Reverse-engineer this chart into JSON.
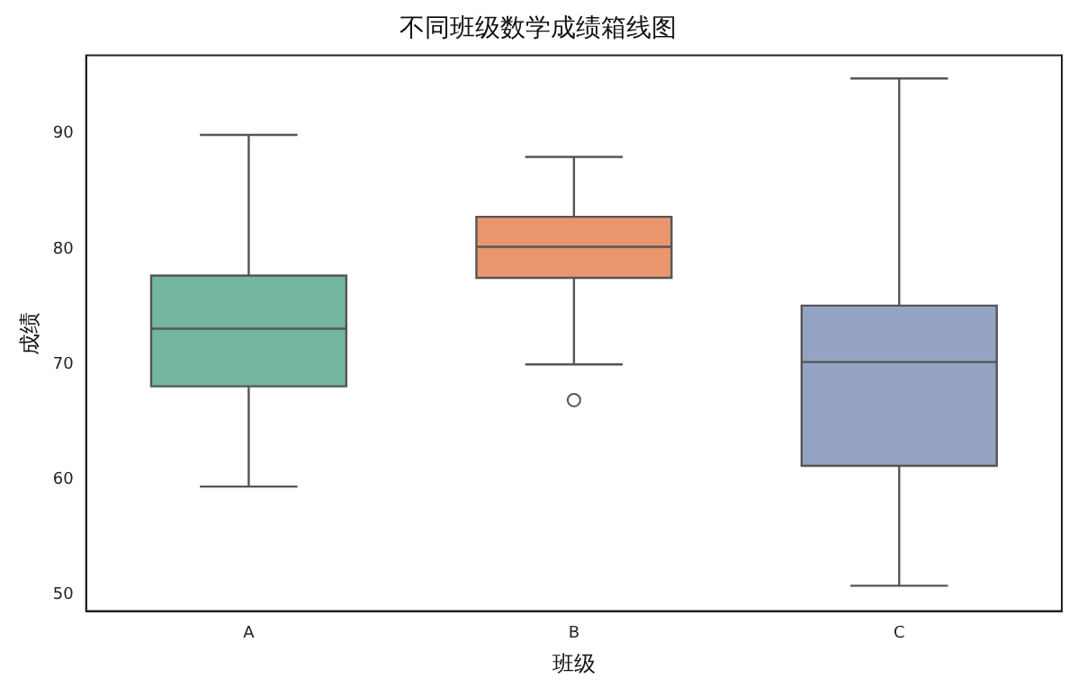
{
  "chart_data": {
    "type": "box",
    "title": "不同班级数学成绩箱线图",
    "xlabel": "班级",
    "ylabel": "成绩",
    "categories": [
      "A",
      "B",
      "C"
    ],
    "colors": [
      "#73b6a1",
      "#e9966f",
      "#95a4c4"
    ],
    "boxes": [
      {
        "low": 59.4,
        "q1": 68.1,
        "median": 73.1,
        "q3": 77.7,
        "high": 89.9
      },
      {
        "low": 70.0,
        "q1": 77.5,
        "median": 80.2,
        "q3": 82.8,
        "high": 88.0,
        "outliers": [
          66.9
        ]
      },
      {
        "low": 50.8,
        "q1": 61.2,
        "median": 70.2,
        "q3": 75.1,
        "high": 94.8
      }
    ],
    "ylim": [
      48.6,
      96.8
    ],
    "yticks": [
      50,
      60,
      70,
      80,
      90
    ]
  }
}
